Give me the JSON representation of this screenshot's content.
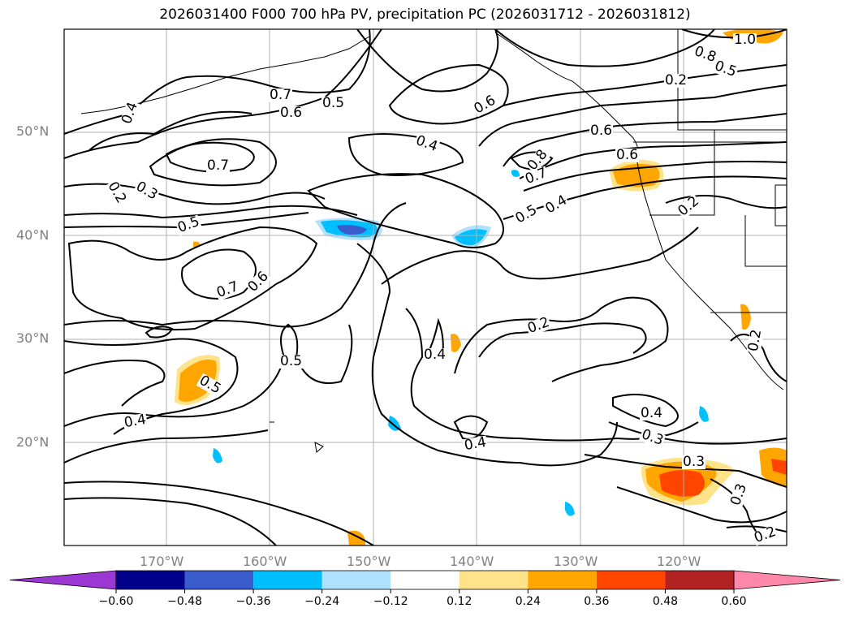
{
  "title": "2026031400 F000 700 hPa PV, precipitation PC (2026031712 - 2026031812)",
  "lat_labels": [
    "50°N",
    "40°N",
    "30°N",
    "20°N"
  ],
  "lon_labels": [
    "170°W",
    "160°W",
    "150°W",
    "140°W",
    "130°W",
    "120°W"
  ],
  "contour_labels": [
    "0.4",
    "0.7",
    "0.6",
    "0.5",
    "0.6",
    "0.4",
    "0.7",
    "0.2",
    "0.3",
    "0.5",
    "0.7",
    "0.6",
    "0.8",
    "0.7",
    "0.5",
    "0.4",
    "0.6",
    "0.6",
    "0.8",
    "0.5",
    "1.0",
    "0.2",
    "0.2",
    "0.4",
    "0.5",
    "0.5",
    "0.4",
    "0.2",
    "0.4",
    "0.3",
    "0.4",
    "0.3",
    "0.2",
    "0.3",
    "0.2"
  ],
  "colorbar": {
    "ticks": [
      "−0.60",
      "−0.48",
      "−0.36",
      "−0.24",
      "−0.12",
      "0.12",
      "0.24",
      "0.36",
      "0.48",
      "0.60"
    ],
    "colors": [
      "#9b37d2",
      "#00008b",
      "#3a5bcc",
      "#00bfff",
      "#aee2ff",
      "#ffffff",
      "#ffe38a",
      "#ffa500",
      "#ff4500",
      "#b22222",
      "#ff88aa"
    ]
  }
}
